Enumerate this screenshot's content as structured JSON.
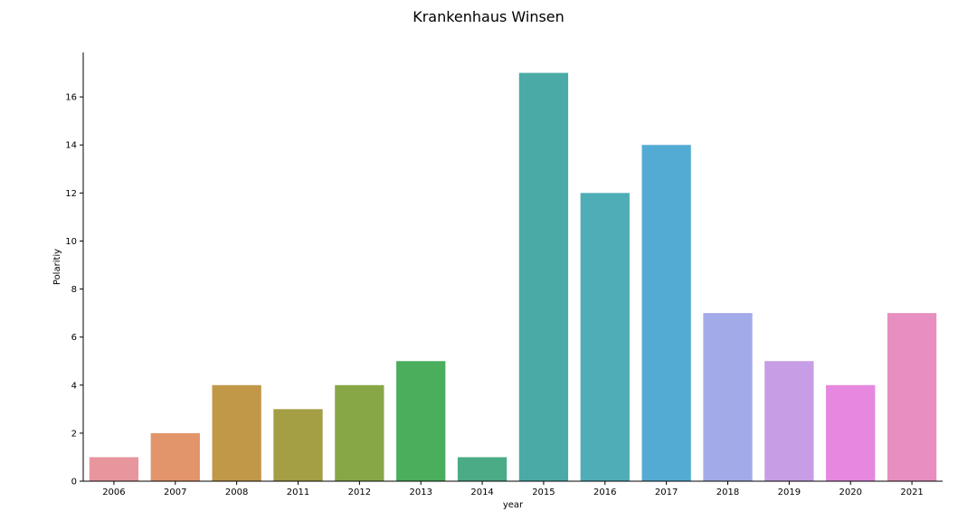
{
  "chart_data": {
    "type": "bar",
    "title": "Krankenhaus Winsen",
    "xlabel": "year",
    "ylabel": "Polaritiy",
    "categories": [
      "2006",
      "2007",
      "2008",
      "2011",
      "2012",
      "2013",
      "2014",
      "2015",
      "2016",
      "2017",
      "2018",
      "2019",
      "2020",
      "2021"
    ],
    "values": [
      1,
      2,
      4,
      3,
      4,
      5,
      1,
      17,
      12,
      14,
      7,
      5,
      4,
      7
    ],
    "colors": [
      "#e8969d",
      "#e2946a",
      "#c19748",
      "#a49e44",
      "#87a746",
      "#4aae5c",
      "#4aab86",
      "#4aab a6",
      "#4eadb7",
      "#53abd4",
      "#a2abe8",
      "#c79de6",
      "#e688e0",
      "#e68fc0"
    ],
    "ylim": [
      0,
      17.85
    ],
    "yticks": [
      "0",
      "2",
      "4",
      "6",
      "8",
      "10",
      "12",
      "14",
      "16"
    ],
    "grid": false,
    "legend": "none"
  }
}
